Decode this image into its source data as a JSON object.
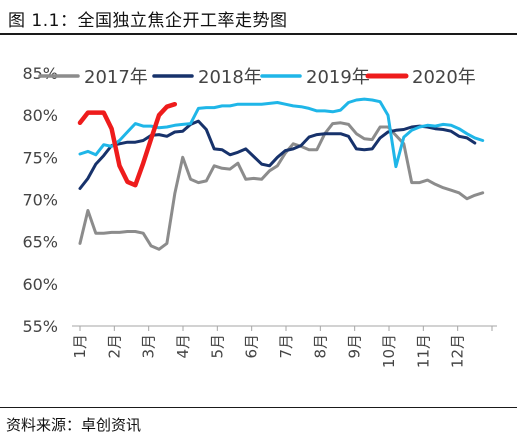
{
  "header": {
    "title": "图 1.1：全国独立焦企开工率走势图"
  },
  "footer": {
    "source": "资料来源：卓创资讯"
  },
  "chart_data": {
    "type": "line",
    "title": "",
    "xlabel": "",
    "ylabel": "",
    "ylim": [
      55,
      85
    ],
    "y_ticks": [
      55,
      60,
      65,
      70,
      75,
      80,
      85
    ],
    "y_tick_labels": [
      "55%",
      "60%",
      "65%",
      "70%",
      "75%",
      "80%",
      "85%"
    ],
    "x_ticks": [
      1,
      2,
      3,
      4,
      5,
      6,
      7,
      8,
      9,
      10,
      11,
      12
    ],
    "x_tick_labels": [
      "1月",
      "2月",
      "3月",
      "4月",
      "5月",
      "6月",
      "7月",
      "8月",
      "9月",
      "10月",
      "11月",
      "12月"
    ],
    "xlim": [
      1,
      13
    ],
    "grid": false,
    "legend_position": "top",
    "series": [
      {
        "name": "2017年",
        "color": "#8c8c8c",
        "x": [
          1.0,
          1.23,
          1.46,
          1.69,
          1.92,
          2.15,
          2.38,
          2.61,
          2.84,
          3.07,
          3.3,
          3.53,
          3.76,
          3.99,
          4.22,
          4.45,
          4.68,
          4.91,
          5.14,
          5.37,
          5.6,
          5.83,
          6.06,
          6.29,
          6.52,
          6.75,
          6.98,
          7.21,
          7.44,
          7.67,
          7.9,
          8.13,
          8.36,
          8.59,
          8.82,
          9.05,
          9.28,
          9.51,
          9.74,
          9.97,
          10.2,
          10.43,
          10.66,
          10.89,
          11.12,
          11.35,
          11.58,
          11.81,
          12.04,
          12.27,
          12.5,
          12.73
        ],
        "y": [
          64.8,
          68.7,
          66.0,
          66.0,
          66.1,
          66.1,
          66.2,
          66.2,
          66.0,
          64.5,
          64.1,
          64.8,
          70.7,
          75.0,
          72.4,
          72.0,
          72.2,
          74.0,
          73.7,
          73.6,
          74.3,
          72.4,
          72.5,
          72.4,
          73.4,
          74.0,
          75.5,
          76.6,
          76.3,
          75.9,
          75.9,
          77.8,
          79.0,
          79.1,
          78.9,
          77.8,
          77.2,
          77.1,
          78.6,
          78.6,
          77.6,
          76.6,
          72.0,
          72.0,
          72.3,
          71.8,
          71.4,
          71.1,
          70.8,
          70.1,
          70.5,
          70.8
        ]
      },
      {
        "name": "2018年",
        "color": "#17326b",
        "x": [
          1.0,
          1.23,
          1.46,
          1.69,
          1.92,
          2.15,
          2.38,
          2.61,
          2.84,
          3.07,
          3.3,
          3.53,
          3.76,
          3.99,
          4.22,
          4.45,
          4.68,
          4.91,
          5.14,
          5.37,
          5.6,
          5.83,
          6.06,
          6.29,
          6.52,
          6.75,
          6.98,
          7.21,
          7.44,
          7.67,
          7.9,
          8.13,
          8.36,
          8.59,
          8.82,
          9.05,
          9.28,
          9.51,
          9.74,
          9.97,
          10.2,
          10.43,
          10.66,
          10.89,
          11.12,
          11.35,
          11.58,
          11.81,
          12.04,
          12.27,
          12.5
        ],
        "y": [
          71.3,
          72.5,
          74.2,
          75.2,
          76.4,
          76.6,
          76.8,
          76.8,
          77.0,
          77.6,
          77.7,
          77.5,
          78.0,
          78.1,
          78.9,
          79.3,
          78.3,
          76.0,
          75.9,
          75.3,
          75.6,
          76.0,
          75.1,
          74.2,
          74.0,
          75.0,
          75.8,
          76.0,
          76.4,
          77.4,
          77.7,
          77.8,
          77.8,
          77.8,
          77.5,
          76.0,
          75.9,
          76.0,
          77.3,
          78.0,
          78.2,
          78.3,
          78.6,
          78.7,
          78.6,
          78.4,
          78.3,
          78.1,
          77.5,
          77.3,
          76.7
        ]
      },
      {
        "name": "2019年",
        "color": "#1fb6e8",
        "x": [
          1.0,
          1.23,
          1.46,
          1.69,
          1.92,
          2.15,
          2.38,
          2.61,
          2.84,
          3.07,
          3.3,
          3.53,
          3.76,
          3.99,
          4.22,
          4.45,
          4.68,
          4.91,
          5.14,
          5.37,
          5.6,
          5.83,
          6.06,
          6.29,
          6.52,
          6.75,
          6.98,
          7.21,
          7.44,
          7.67,
          7.9,
          8.13,
          8.36,
          8.59,
          8.82,
          9.05,
          9.28,
          9.51,
          9.74,
          9.97,
          10.2,
          10.43,
          10.66,
          10.89,
          11.12,
          11.35,
          11.58,
          11.81,
          12.04,
          12.27,
          12.5,
          12.73
        ],
        "y": [
          75.4,
          75.7,
          75.3,
          76.5,
          76.3,
          77.0,
          78.0,
          79.0,
          78.7,
          78.7,
          78.5,
          78.6,
          78.8,
          78.9,
          79.0,
          80.8,
          80.9,
          80.9,
          81.1,
          81.1,
          81.3,
          81.3,
          81.3,
          81.3,
          81.4,
          81.5,
          81.3,
          81.1,
          81.0,
          80.8,
          80.5,
          80.5,
          80.4,
          80.6,
          81.5,
          81.8,
          81.9,
          81.8,
          81.6,
          80.0,
          73.9,
          77.4,
          78.2,
          78.6,
          78.8,
          78.7,
          78.9,
          78.8,
          78.4,
          77.8,
          77.3,
          77.0
        ]
      },
      {
        "name": "2020年",
        "color": "#ee1c1c",
        "x": [
          1.0,
          1.23,
          1.46,
          1.69,
          1.92,
          2.15,
          2.38,
          2.61,
          2.84,
          3.07,
          3.3,
          3.53,
          3.76
        ],
        "y": [
          79.1,
          80.3,
          80.3,
          80.3,
          78.4,
          74.0,
          72.1,
          71.7,
          74.3,
          77.2,
          80.0,
          81.0,
          81.3
        ]
      }
    ]
  }
}
